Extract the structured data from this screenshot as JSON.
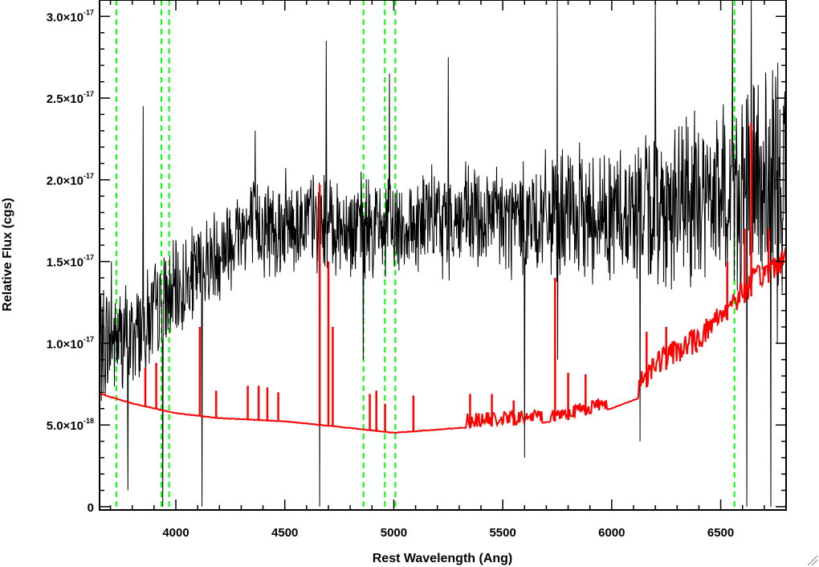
{
  "chart_data": {
    "type": "line",
    "title": "",
    "xlabel": "Rest Wavelength (Ang)",
    "ylabel": "Relative Flux (cgs)",
    "xlim": [
      3650,
      6800
    ],
    "ylim": [
      -2e-19,
      3.1e-17
    ],
    "x_ticks": [
      {
        "value": 4000,
        "label": "4000"
      },
      {
        "value": 4500,
        "label": "4500"
      },
      {
        "value": 5000,
        "label": "5000"
      },
      {
        "value": 5500,
        "label": "5500"
      },
      {
        "value": 6000,
        "label": "6000"
      },
      {
        "value": 6500,
        "label": "6500"
      }
    ],
    "y_ticks": [
      {
        "value": 0,
        "mantissa": "0",
        "exponent": ""
      },
      {
        "value": 5e-18,
        "mantissa": "5.0×10",
        "exponent": "-18"
      },
      {
        "value": 1e-17,
        "mantissa": "1.0×10",
        "exponent": "-17"
      },
      {
        "value": 1.5e-17,
        "mantissa": "1.5×10",
        "exponent": "-17"
      },
      {
        "value": 2e-17,
        "mantissa": "2.0×10",
        "exponent": "-17"
      },
      {
        "value": 2.5e-17,
        "mantissa": "2.5×10",
        "exponent": "-17"
      },
      {
        "value": 3e-17,
        "mantissa": "3.0×10",
        "exponent": "-17"
      }
    ],
    "vlines": [
      3727,
      3934,
      3969,
      4861,
      4959,
      5007,
      6563
    ],
    "colors": {
      "spectrum": "#000000",
      "error": "#ff0000",
      "vlines": "#00ff00"
    },
    "series": [
      {
        "role": "spectrum",
        "continuum_knots": [
          [
            3650,
            1e-17
          ],
          [
            3800,
            1.05e-17
          ],
          [
            4000,
            1.3e-17
          ],
          [
            4300,
            1.7e-17
          ],
          [
            4600,
            1.75e-17
          ],
          [
            4900,
            1.7e-17
          ],
          [
            5200,
            1.75e-17
          ],
          [
            5600,
            1.75e-17
          ],
          [
            6000,
            1.8e-17
          ],
          [
            6300,
            1.85e-17
          ],
          [
            6500,
            1.9e-17
          ],
          [
            6800,
            2e-17
          ]
        ],
        "noise_knots": [
          [
            3650,
            3.5e-18
          ],
          [
            4000,
            3e-18
          ],
          [
            4500,
            3e-18
          ],
          [
            5000,
            3e-18
          ],
          [
            5500,
            3.5e-18
          ],
          [
            6000,
            4e-18
          ],
          [
            6500,
            5.5e-18
          ],
          [
            6800,
            7e-18
          ]
        ],
        "features": [
          [
            3705,
            1.5e-17
          ],
          [
            3780,
            1e-18
          ],
          [
            3850,
            2.45e-17
          ],
          [
            3940,
            0.0
          ],
          [
            4120,
            0.0
          ],
          [
            4365,
            2.3e-17
          ],
          [
            4660,
            0.0
          ],
          [
            4690,
            2.85e-17
          ],
          [
            4860,
            9e-18
          ],
          [
            4980,
            2.65e-17
          ],
          [
            5250,
            2.75e-17
          ],
          [
            5600,
            3e-18
          ],
          [
            5750,
            3.4e-17
          ],
          [
            5752,
            9e-18
          ],
          [
            6130,
            4e-18
          ],
          [
            6200,
            3.3e-17
          ],
          [
            6555,
            3.3e-17
          ],
          [
            6620,
            0.0
          ],
          [
            6640,
            3.3e-17
          ],
          [
            6730,
            0.0
          ],
          [
            6760,
            1e-17
          ]
        ]
      },
      {
        "role": "error",
        "baseline_knots": [
          [
            3650,
            6.9e-18
          ],
          [
            3800,
            6.3e-18
          ],
          [
            4000,
            5.7e-18
          ],
          [
            4200,
            5.4e-18
          ],
          [
            4500,
            5.2e-18
          ],
          [
            4800,
            4.8e-18
          ],
          [
            5000,
            4.5e-18
          ],
          [
            5300,
            4.8e-18
          ],
          [
            5600,
            5e-18
          ],
          [
            5800,
            5.3e-18
          ],
          [
            6000,
            6e-18
          ],
          [
            6120,
            6.6e-18
          ],
          [
            6200,
            8e-18
          ],
          [
            6400,
            9.5e-18
          ],
          [
            6500,
            1.1e-17
          ],
          [
            6650,
            1.3e-17
          ],
          [
            6800,
            1.45e-17
          ]
        ],
        "spikes": [
          [
            3860,
            8.5e-18
          ],
          [
            3910,
            8.8e-18
          ],
          [
            4110,
            1.1e-17
          ],
          [
            4185,
            7.1e-18
          ],
          [
            4330,
            7.4e-18
          ],
          [
            4380,
            7.4e-18
          ],
          [
            4420,
            7.3e-18
          ],
          [
            4470,
            7e-18
          ],
          [
            4660,
            1.97e-17
          ],
          [
            4700,
            1.5e-17
          ],
          [
            4720,
            1.1e-17
          ],
          [
            4890,
            6.9e-18
          ],
          [
            4920,
            7.1e-18
          ],
          [
            4960,
            6.3e-18
          ],
          [
            5090,
            6.8e-18
          ],
          [
            5350,
            6.9e-18
          ],
          [
            5450,
            6.9e-18
          ],
          [
            5550,
            6.5e-18
          ],
          [
            5740,
            1.4e-17
          ],
          [
            5800,
            8.2e-18
          ],
          [
            5880,
            8.1e-18
          ],
          [
            6160,
            1.07e-17
          ],
          [
            6250,
            1.1e-17
          ],
          [
            6390,
            9.7e-18
          ],
          [
            6530,
            1.5e-17
          ],
          [
            6610,
            1.7e-17
          ],
          [
            6640,
            2.35e-17
          ],
          [
            6720,
            1.7e-17
          ]
        ]
      }
    ]
  }
}
